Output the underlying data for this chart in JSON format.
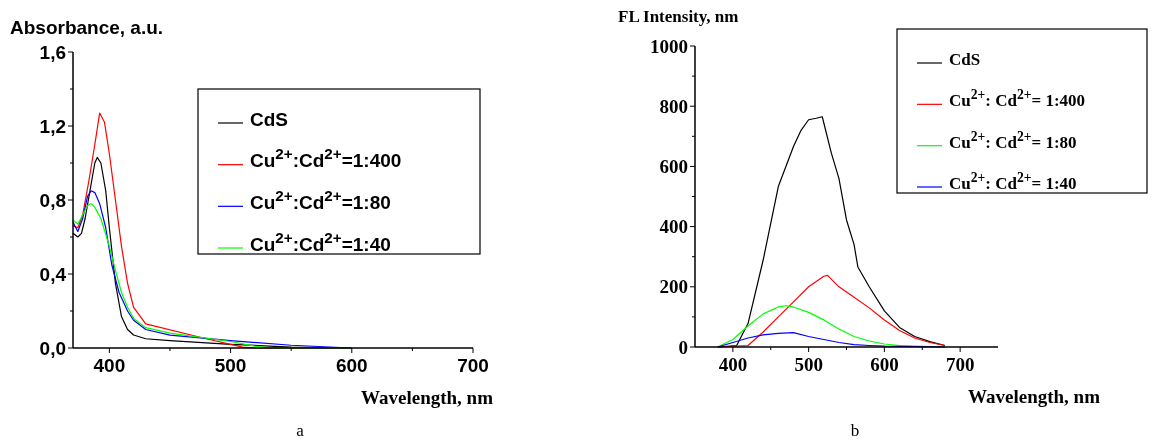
{
  "chart_data": [
    {
      "type": "line",
      "ylabel": "Absorbance, a.u.",
      "xlabel": "Wavelength, nm",
      "annotations": [
        "a"
      ],
      "xlim": [
        370,
        700
      ],
      "ylim": [
        0,
        1.6
      ],
      "xticks": [
        400,
        {
          "value": 450,
          "label": null
        },
        500,
        {
          "value": 550,
          "label": null
        },
        600,
        {
          "value": 650,
          "label": null
        },
        700
      ],
      "yticks": [
        {
          "value": 0,
          "label": "0,0"
        },
        {
          "value": 0.2,
          "label": null
        },
        {
          "value": 0.4,
          "label": "0,4"
        },
        {
          "value": 0.6,
          "label": null
        },
        {
          "value": 0.8,
          "label": "0,8"
        },
        {
          "value": 1.0,
          "label": null
        },
        {
          "value": 1.2,
          "label": "1,2"
        },
        {
          "value": 1.4,
          "label": null
        },
        {
          "value": 1.6,
          "label": "1,6"
        }
      ],
      "grid": false,
      "legend": "top right",
      "marker": "none",
      "line_style": "solid",
      "series": [
        {
          "name": "CdS",
          "color": "#000000",
          "x": [
            370,
            374,
            377,
            380,
            384,
            388,
            390,
            393,
            397,
            400,
            405,
            410,
            415,
            420,
            430,
            450,
            500,
            550,
            600
          ],
          "values": [
            0.62,
            0.6,
            0.62,
            0.7,
            0.85,
            1.0,
            1.03,
            1.0,
            0.85,
            0.65,
            0.35,
            0.17,
            0.1,
            0.07,
            0.05,
            0.04,
            0.02,
            0.005,
            0
          ]
        },
        {
          "name": "Cu$^{2+}$:Cd$^{2+}$=1:400",
          "color": "#ff0000",
          "x": [
            370,
            374,
            378,
            383,
            388,
            392,
            396,
            400,
            405,
            410,
            415,
            420,
            430,
            450,
            480,
            500,
            510,
            520,
            600
          ],
          "values": [
            0.66,
            0.65,
            0.72,
            0.9,
            1.1,
            1.27,
            1.22,
            1.05,
            0.8,
            0.55,
            0.35,
            0.22,
            0.13,
            null,
            0.05,
            0.02,
            0.005,
            0,
            0
          ]
        },
        {
          "name": "Cu$^{2+}$:Cd$^{2+}$=1:80",
          "color": "#0000ff",
          "x": [
            370,
            374,
            378,
            382,
            385,
            388,
            392,
            397,
            402,
            408,
            415,
            420,
            430,
            450,
            500,
            550,
            600
          ],
          "values": [
            0.68,
            0.63,
            0.7,
            0.82,
            0.85,
            0.84,
            0.78,
            0.65,
            0.45,
            0.3,
            0.2,
            0.15,
            0.1,
            0.07,
            0.04,
            0.015,
            0
          ]
        },
        {
          "name": "Cu$^{2+}$:Cd$^{2+}$=1:40",
          "color": "#00ff00",
          "x": [
            370,
            374,
            378,
            382,
            385,
            388,
            393,
            400,
            405,
            410,
            415,
            420,
            430,
            450,
            500,
            520,
            535,
            600
          ],
          "values": [
            0.69,
            0.67,
            0.72,
            0.77,
            0.78,
            0.76,
            0.7,
            0.55,
            0.42,
            0.3,
            0.22,
            0.16,
            0.11,
            0.08,
            0.035,
            0.01,
            0,
            0
          ]
        }
      ]
    },
    {
      "type": "line",
      "ylabel": "FL Intensity, nm",
      "xlabel": "Wavelength, nm",
      "annotations": [
        "b"
      ],
      "xlim": [
        350,
        750
      ],
      "ylim": [
        0,
        1000
      ],
      "xticks": [
        400,
        {
          "value": 450,
          "label": null
        },
        500,
        {
          "value": 550,
          "label": null
        },
        600,
        {
          "value": 650,
          "label": null
        },
        700
      ],
      "yticks": [
        0,
        {
          "value": 100,
          "label": null
        },
        200,
        {
          "value": 300,
          "label": null
        },
        400,
        {
          "value": 500,
          "label": null
        },
        600,
        {
          "value": 700,
          "label": null
        },
        800,
        {
          "value": 900,
          "label": null
        },
        1000
      ],
      "grid": false,
      "legend": "top right",
      "marker": "none",
      "line_style": "solid",
      "series": [
        {
          "name": "CdS",
          "color": "#000000",
          "x": [
            380,
            405,
            420,
            440,
            460,
            480,
            490,
            500,
            510,
            518,
            530,
            540,
            550,
            560,
            565,
            580,
            600,
            620,
            640,
            660,
            680
          ],
          "values": [
            0,
            5,
            78,
            289,
            533,
            666,
            720,
            755,
            760,
            765,
            644,
            560,
            422,
            340,
            266,
            200,
            120,
            65,
            35,
            18,
            5
          ]
        },
        {
          "name": "Cu$^{2+}$: Cd$^{2+}$= 1:400",
          "color": "#ff0000",
          "x": [
            380,
            420,
            440,
            460,
            480,
            500,
            520,
            525,
            540,
            560,
            580,
            600,
            620,
            640,
            660,
            680
          ],
          "values": [
            0,
            5,
            50,
            100,
            150,
            200,
            235,
            238,
            200,
            165,
            130,
            90,
            55,
            30,
            15,
            5
          ]
        },
        {
          "name": "Cu$^{2+}$: Cd$^{2+}$= 1:80",
          "color": "#00ff00",
          "x": [
            380,
            400,
            420,
            440,
            460,
            470,
            480,
            500,
            520,
            540,
            560,
            580,
            600,
            620,
            650,
            680
          ],
          "values": [
            0,
            25,
            70,
            110,
            133,
            137,
            133,
            115,
            90,
            60,
            35,
            20,
            10,
            5,
            null,
            0
          ]
        },
        {
          "name": "Cu$^{2+}$: Cd$^{2+}$= 1:40",
          "color": "#0000ff",
          "x": [
            380,
            400,
            420,
            440,
            460,
            480,
            500,
            520,
            540,
            560,
            580,
            600,
            650,
            680
          ],
          "values": [
            0,
            15,
            30,
            40,
            45,
            48,
            35,
            25,
            15,
            8,
            5,
            3,
            null,
            0
          ]
        }
      ]
    }
  ]
}
